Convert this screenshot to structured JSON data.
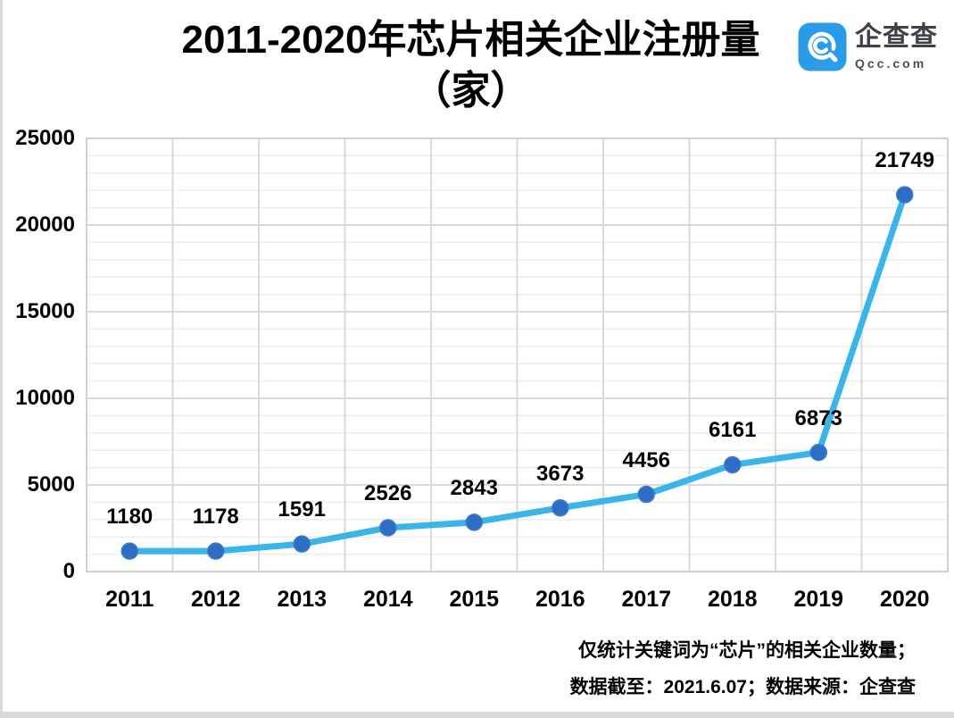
{
  "header": {
    "title_line1": "2011-2020年芯片相关企业注册量",
    "title_line2": "（家）",
    "logo": {
      "name": "企查查",
      "domain": "Qcc.com",
      "icon": "qcc-logo-icon",
      "brand_color": "#2a9ce8",
      "text_color": "#3d4248"
    }
  },
  "chart_data": {
    "type": "line",
    "title": "2011-2020年芯片相关企业注册量（家）",
    "categories": [
      "2011",
      "2012",
      "2013",
      "2014",
      "2015",
      "2016",
      "2017",
      "2018",
      "2019",
      "2020"
    ],
    "series": [
      {
        "name": "芯片相关企业注册量",
        "values": [
          1180,
          1178,
          1591,
          2526,
          2843,
          3673,
          4456,
          6161,
          6873,
          21749
        ]
      }
    ],
    "data_labels": [
      "1180",
      "1178",
      "1591",
      "2526",
      "2843",
      "3673",
      "4456",
      "6161",
      "6873",
      "21749"
    ],
    "xlabel": "",
    "ylabel": "",
    "ylim": [
      0,
      25000
    ],
    "y_major_step": 5000,
    "y_minor_step": 1000,
    "y_ticks": [
      {
        "value": 0,
        "label": "0"
      },
      {
        "value": 5000,
        "label": "5000"
      },
      {
        "value": 10000,
        "label": "10000"
      },
      {
        "value": 15000,
        "label": "15000"
      },
      {
        "value": 20000,
        "label": "20000"
      },
      {
        "value": 25000,
        "label": "25000"
      }
    ],
    "grid": true,
    "legend": "none",
    "colors": {
      "line": "#3ab5e9",
      "marker": "#2c6ec4",
      "grid_major": "#d9d9d9",
      "grid_minor": "#ededed",
      "plot_border": "#d0d0d0"
    }
  },
  "footer": {
    "note_line1": "仅统计关键词为“芯片”的相关企业数量；",
    "note_line2": "数据截至：2021.6.07；数据来源：企查查"
  }
}
